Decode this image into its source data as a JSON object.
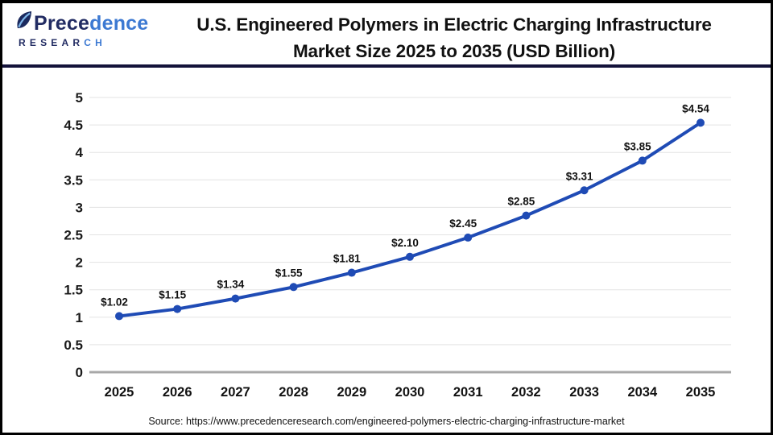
{
  "header": {
    "logo": {
      "brand_part1": "Prece",
      "brand_part2": "dence",
      "sub_part1": "RESEAR",
      "sub_part2": "CH"
    },
    "title_line1": "U.S. Engineered Polymers in Electric Charging Infrastructure",
    "title_line2": "Market Size 2025 to 2035 (USD Billion)"
  },
  "chart_data": {
    "type": "line",
    "title": "U.S. Engineered Polymers in Electric Charging Infrastructure Market Size 2025 to 2035 (USD Billion)",
    "categories": [
      "2025",
      "2026",
      "2027",
      "2028",
      "2029",
      "2030",
      "2031",
      "2032",
      "2033",
      "2034",
      "2035"
    ],
    "values": [
      1.02,
      1.15,
      1.34,
      1.55,
      1.81,
      2.1,
      2.45,
      2.85,
      3.31,
      3.85,
      4.54
    ],
    "point_labels": [
      "$1.02",
      "$1.15",
      "$1.34",
      "$1.55",
      "$1.81",
      "$2.10",
      "$2.45",
      "$2.85",
      "$3.31",
      "$3.85",
      "$4.54"
    ],
    "unit": "USD Billion",
    "xlabel": "",
    "ylabel": "",
    "yticks": [
      0,
      0.5,
      1,
      1.5,
      2,
      2.5,
      3,
      3.5,
      4,
      4.5,
      5
    ],
    "ylim": [
      0,
      5
    ],
    "grid": "on",
    "legend": "none",
    "line_color": "#1f4bb5",
    "grid_color": "#e3e3e3",
    "axis_line_color": "#a8a8a8",
    "label_color": "#111111",
    "tick_color": "#1a1a1a"
  },
  "footer": {
    "source_text": "Source: https://www.precedenceresearch.com/engineered-polymers-electric-charging-infrastructure-market"
  }
}
